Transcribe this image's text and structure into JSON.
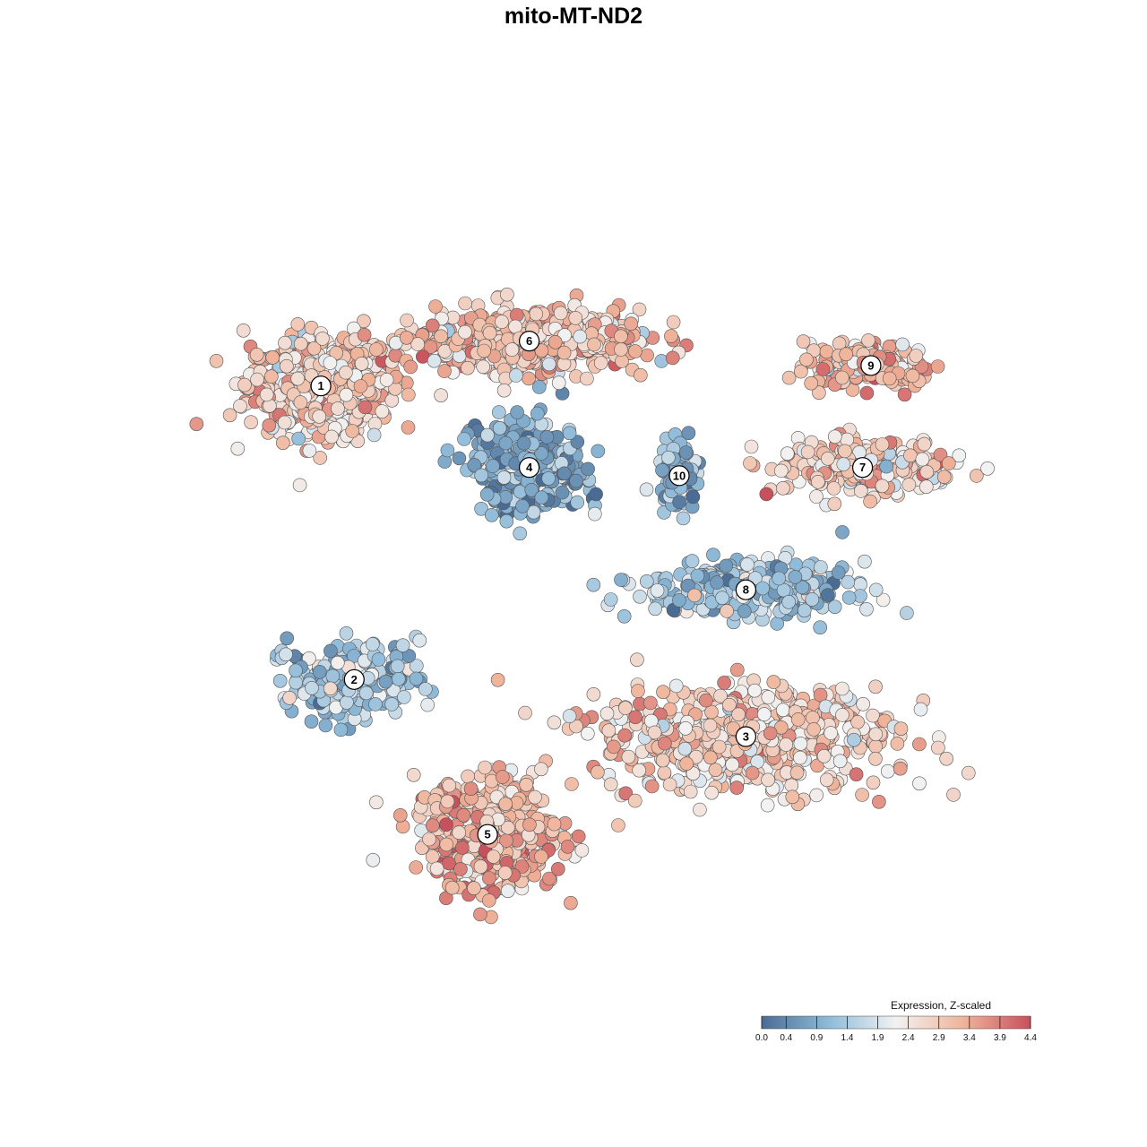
{
  "chart_data": {
    "type": "scatter",
    "title": "mito-MT-ND2",
    "xlabel": "",
    "ylabel": "",
    "xlim": [
      0,
      100
    ],
    "ylim": [
      0,
      100
    ],
    "grid": false,
    "colors": {
      "low": "#4a6c94",
      "mid_low": "#8fbbd9",
      "mid": "#f2f2f2",
      "mid_high": "#f0b49a",
      "high": "#c8505c",
      "point_stroke": "#555555"
    },
    "legend": {
      "title": "Expression, Z-scaled",
      "placement": "bottom-right",
      "ticks": [
        "0.0",
        "0.4",
        "0.9",
        "1.4",
        "1.9",
        "2.4",
        "2.9",
        "3.4",
        "3.9",
        "4.4"
      ],
      "min": 0.0,
      "max": 4.4
    },
    "clusters": [
      {
        "label": "1",
        "x": 17.0,
        "y": 73.0,
        "spread": [
          8.0,
          5.5
        ],
        "n": 520,
        "mean": 2.8
      },
      {
        "label": "6",
        "x": 42.0,
        "y": 78.5,
        "spread": [
          12.0,
          3.5
        ],
        "n": 520,
        "mean": 2.9
      },
      {
        "label": "9",
        "x": 83.0,
        "y": 75.5,
        "spread": [
          7.0,
          2.5
        ],
        "n": 160,
        "mean": 3.1
      },
      {
        "label": "7",
        "x": 82.0,
        "y": 63.0,
        "spread": [
          10.0,
          3.0
        ],
        "n": 240,
        "mean": 2.8
      },
      {
        "label": "4",
        "x": 42.0,
        "y": 63.0,
        "spread": [
          6.0,
          5.0
        ],
        "n": 380,
        "mean": 0.9
      },
      {
        "label": "10",
        "x": 60.0,
        "y": 62.0,
        "spread": [
          2.5,
          3.5
        ],
        "n": 80,
        "mean": 1.2
      },
      {
        "label": "8",
        "x": 68.0,
        "y": 48.0,
        "spread": [
          11.0,
          3.0
        ],
        "n": 320,
        "mean": 1.3
      },
      {
        "label": "2",
        "x": 21.0,
        "y": 37.0,
        "spread": [
          7.0,
          4.0
        ],
        "n": 260,
        "mean": 1.3
      },
      {
        "label": "3",
        "x": 68.0,
        "y": 30.0,
        "spread": [
          16.0,
          6.0
        ],
        "n": 600,
        "mean": 2.8
      },
      {
        "label": "5",
        "x": 37.0,
        "y": 18.0,
        "spread": [
          8.0,
          6.0
        ],
        "n": 480,
        "mean": 3.2
      }
    ]
  }
}
